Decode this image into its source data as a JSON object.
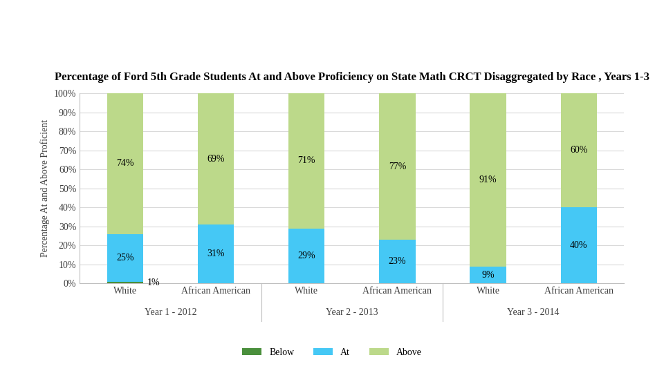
{
  "chart_data": {
    "type": "bar",
    "stacked": true,
    "data_labels": true,
    "grid": true,
    "legend": "lower center",
    "title": "Percentage of Ford 5th Grade Students At and Above Proficiency on State Math CRCT Disaggregated by Race , Years 1-3",
    "y_label": "Percentage At and Above Proficient",
    "categories": [
      "White",
      "African American",
      "White",
      "African American",
      "White",
      "African American"
    ],
    "groups": [
      "Year 1 - 2012",
      "Year 2 - 2013",
      "Year 3 - 2014"
    ],
    "series": [
      {
        "name": "Below",
        "color": "#4a8f3c",
        "values": [
          1,
          null,
          null,
          null,
          null,
          null
        ],
        "value_labels": [
          "1%",
          null,
          null,
          null,
          null,
          null
        ]
      },
      {
        "name": "At",
        "color": "#45c8f5",
        "values": [
          25,
          31,
          29,
          23,
          9,
          40
        ],
        "value_labels": [
          "25%",
          "31%",
          "29%",
          "23%",
          "9%",
          "40%"
        ]
      },
      {
        "name": "Above",
        "color": "#bcd98a",
        "values": [
          74,
          69,
          71,
          77,
          91,
          60
        ],
        "value_labels": [
          "74%",
          "69%",
          "71%",
          "77%",
          "91%",
          "60%"
        ]
      }
    ],
    "ylim": [
      0,
      100
    ],
    "yticks": [
      {
        "value": 0,
        "label": "0%"
      },
      {
        "value": 10,
        "label": "10%"
      },
      {
        "value": 20,
        "label": "20%"
      },
      {
        "value": 30,
        "label": "30%"
      },
      {
        "value": 40,
        "label": "40%"
      },
      {
        "value": 50,
        "label": "50%"
      },
      {
        "value": 60,
        "label": "60%"
      },
      {
        "value": 70,
        "label": "70%"
      },
      {
        "value": 80,
        "label": "80%"
      },
      {
        "value": 90,
        "label": "90%"
      },
      {
        "value": 100,
        "label": "100%"
      }
    ]
  }
}
